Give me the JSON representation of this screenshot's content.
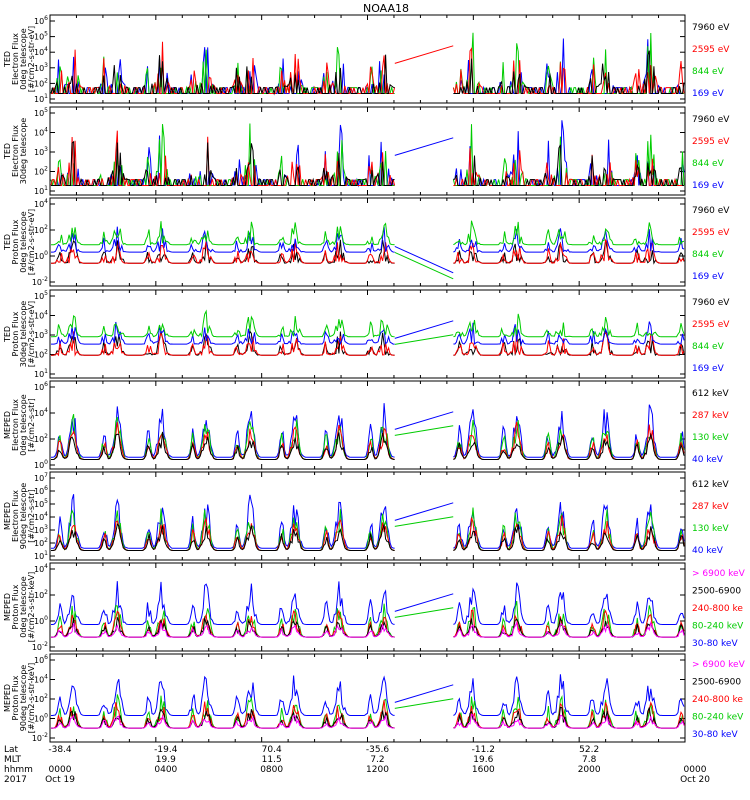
{
  "title": "NOAA18",
  "chart_data": [
    {
      "type": "line",
      "ylabel": [
        "TED",
        "Electron Flux",
        "0deg telescope",
        "[#/cm2-s-str-eV]"
      ],
      "y_ticks": [
        "10^1",
        "10^2",
        "10^3",
        "10^4",
        "10^5",
        "10^6"
      ],
      "legend": [
        {
          "name": "7960 eV",
          "color": "#000000"
        },
        {
          "name": "2595 eV",
          "color": "#ff0000"
        },
        {
          "name": "844 eV",
          "color": "#00cc00"
        },
        {
          "name": "169 eV",
          "color": "#0000ff"
        }
      ]
    },
    {
      "type": "line",
      "ylabel": [
        "TED",
        "Electron Flux",
        "30deg telescope",
        ""
      ],
      "y_ticks": [
        "10^1",
        "10^2",
        "10^3",
        "10^4",
        "10^5"
      ],
      "legend": [
        {
          "name": "7960 eV",
          "color": "#000000"
        },
        {
          "name": "2595 eV",
          "color": "#ff0000"
        },
        {
          "name": "844 eV",
          "color": "#00cc00"
        },
        {
          "name": "169 eV",
          "color": "#0000ff"
        }
      ]
    },
    {
      "type": "line",
      "ylabel": [
        "TED",
        "Proton Flux",
        "0deg telescope",
        "[#/cm2-s-str-eV]"
      ],
      "y_ticks": [
        "10^-2",
        "10^0",
        "10^2",
        "10^4"
      ],
      "legend": [
        {
          "name": "7960 eV",
          "color": "#000000"
        },
        {
          "name": "2595 eV",
          "color": "#ff0000"
        },
        {
          "name": "844 eV",
          "color": "#00cc00"
        },
        {
          "name": "169 eV",
          "color": "#0000ff"
        }
      ]
    },
    {
      "type": "line",
      "ylabel": [
        "TED",
        "Proton Flux",
        "30deg telescope",
        "[#/cm2-s-str-eV]"
      ],
      "y_ticks": [
        "10^1",
        "10^2",
        "10^3",
        "10^4",
        "10^5"
      ],
      "legend": [
        {
          "name": "7960 eV",
          "color": "#000000"
        },
        {
          "name": "2595 eV",
          "color": "#ff0000"
        },
        {
          "name": "844 eV",
          "color": "#00cc00"
        },
        {
          "name": "169 eV",
          "color": "#0000ff"
        }
      ]
    },
    {
      "type": "line",
      "ylabel": [
        "MEPED",
        "Electron Flux",
        "0deg telescope",
        "[#/cm2-s-str]"
      ],
      "y_ticks": [
        "10^0",
        "10^2",
        "10^4",
        "10^6"
      ],
      "legend": [
        {
          "name": "612 keV",
          "color": "#000000"
        },
        {
          "name": "287 keV",
          "color": "#ff0000"
        },
        {
          "name": "130 keV",
          "color": "#00cc00"
        },
        {
          "name": "40 keV",
          "color": "#0000ff"
        }
      ]
    },
    {
      "type": "line",
      "ylabel": [
        "MEPED",
        "Electron Flux",
        "90deg telescope",
        "[#/cm2-s-str]"
      ],
      "y_ticks": [
        "10^1",
        "10^2",
        "10^3",
        "10^4",
        "10^5",
        "10^6",
        "10^7"
      ],
      "legend": [
        {
          "name": "612 keV",
          "color": "#000000"
        },
        {
          "name": "287 keV",
          "color": "#ff0000"
        },
        {
          "name": "130 keV",
          "color": "#00cc00"
        },
        {
          "name": "40 keV",
          "color": "#0000ff"
        }
      ]
    },
    {
      "type": "line",
      "ylabel": [
        "MEPED",
        "Proton Flux",
        "0deg telescope",
        "[#/cm2-s-str-keV]"
      ],
      "y_ticks": [
        "10^-2",
        "10^0",
        "10^2",
        "10^4"
      ],
      "legend": [
        {
          "name": "> 6900 keV",
          "color": "#ff00ff"
        },
        {
          "name": "2500-6900",
          "color": "#000000"
        },
        {
          "name": "240-800 ke",
          "color": "#ff0000"
        },
        {
          "name": "80-240 keV",
          "color": "#00cc00"
        },
        {
          "name": "30-80 keV",
          "color": "#0000ff"
        }
      ]
    },
    {
      "type": "line",
      "ylabel": [
        "MEPED",
        "Proton Flux",
        "90deg telescope",
        "[#/cm2-s-str-keV]"
      ],
      "y_ticks": [
        "10^-2",
        "10^0",
        "10^2",
        "10^4",
        "10^6"
      ],
      "legend": [
        {
          "name": "> 6900 keV",
          "color": "#ff00ff"
        },
        {
          "name": "2500-6900",
          "color": "#000000"
        },
        {
          "name": "240-800 ke",
          "color": "#ff0000"
        },
        {
          "name": "80-240 keV",
          "color": "#00cc00"
        },
        {
          "name": "30-80 keV",
          "color": "#0000ff"
        }
      ]
    }
  ],
  "x_axis": {
    "row_labels": [
      "Lat",
      "MLT",
      "hhmm",
      "2017"
    ],
    "columns": [
      {
        "lat": "-38.4",
        "mlt": "",
        "hhmm": "0000",
        "date": "Oct 19"
      },
      {
        "lat": "-19.4",
        "mlt": "19.9",
        "hhmm": "0400",
        "date": ""
      },
      {
        "lat": "70.4",
        "mlt": "11.5",
        "hhmm": "0800",
        "date": ""
      },
      {
        "lat": "-35.6",
        "mlt": "7.2",
        "hhmm": "1200",
        "date": ""
      },
      {
        "lat": "-11.2",
        "mlt": "19.6",
        "hhmm": "1600",
        "date": ""
      },
      {
        "lat": "52.2",
        "mlt": "7.8",
        "hhmm": "2000",
        "date": ""
      },
      {
        "lat": "",
        "mlt": "",
        "hhmm": "0000",
        "date": "Oct 20"
      }
    ]
  }
}
